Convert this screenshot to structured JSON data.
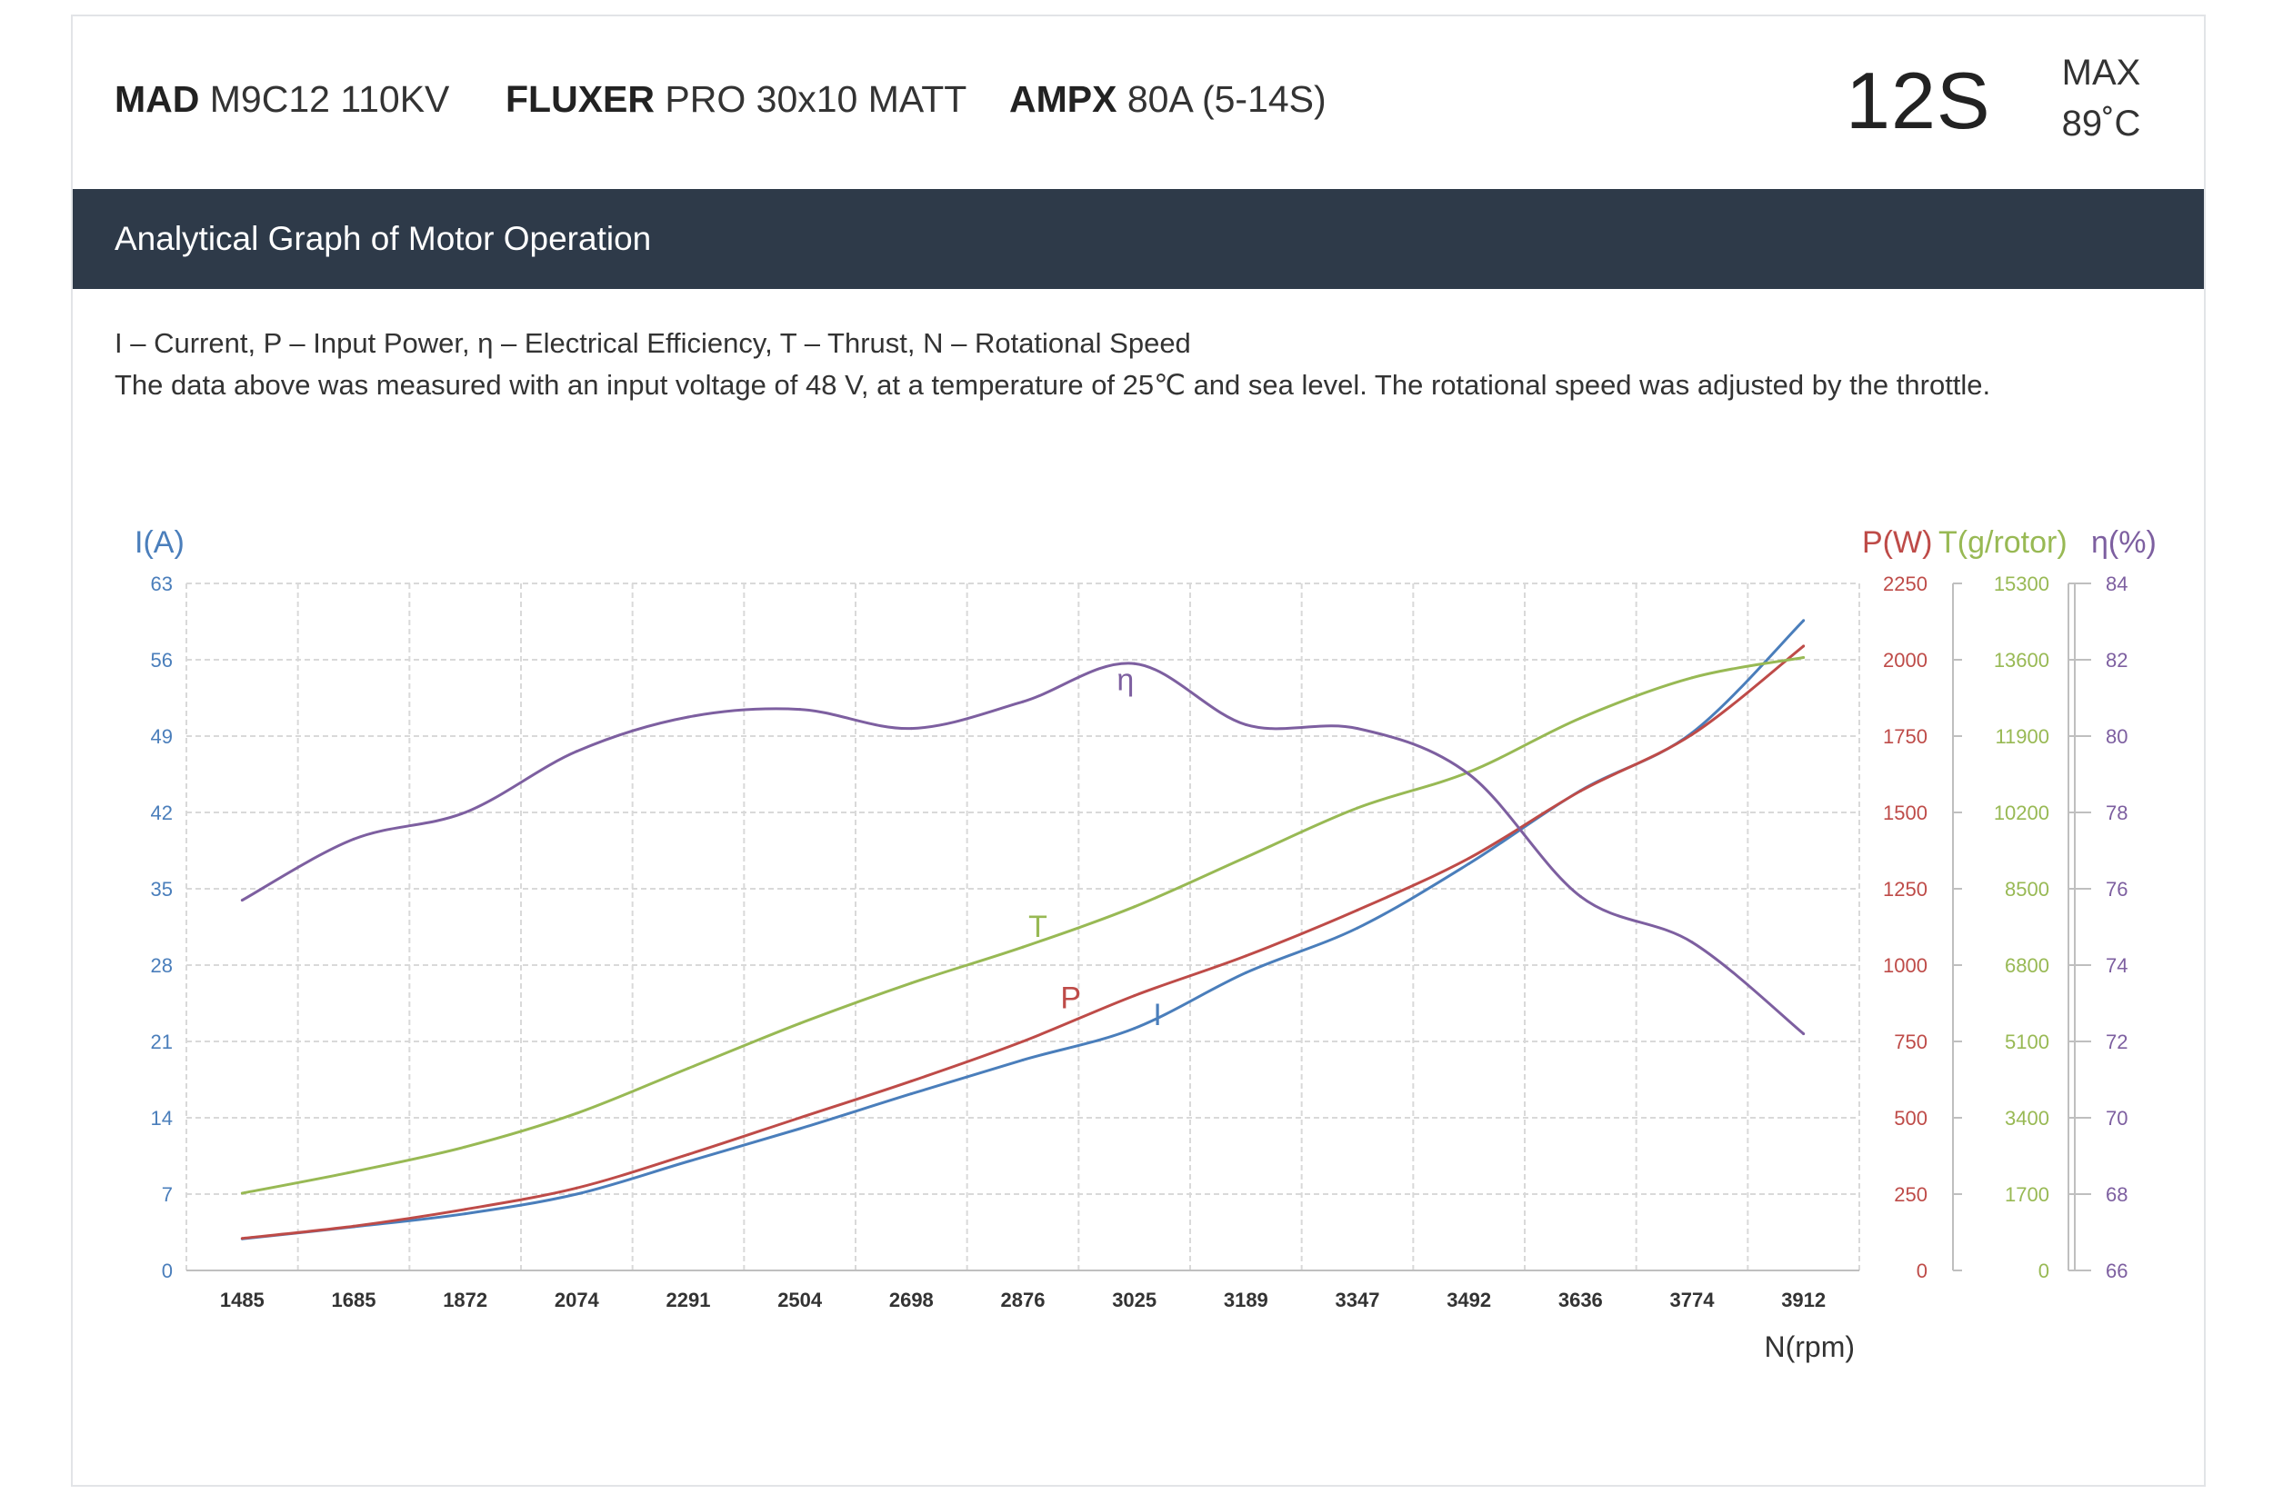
{
  "header": {
    "motor": {
      "brand": "MAD",
      "model": "M9C12 110KV"
    },
    "prop": {
      "brand": "FLUXER",
      "model": "PRO 30x10 MATT"
    },
    "esc": {
      "brand": "AMPX",
      "model": "80A (5-14S)"
    },
    "cells": "12S",
    "max_label": "MAX",
    "max_temp": "89˚C"
  },
  "section_title": "Analytical Graph of Motor Operation",
  "legend_text": "I – Current, P – Input Power, η – Electrical Efficiency, T – Thrust,   N – Rotational Speed",
  "note_text": "The data above was measured with an input voltage of   48 V, at a temperature of 25℃ and sea level. The rotational speed was adjusted by the throttle.",
  "colors": {
    "current": "#4a7ebb",
    "power": "#be4b48",
    "thrust": "#98b954",
    "efficiency": "#7d5fa0",
    "axis_text": "#333333",
    "grid": "#d9d9d9",
    "header_bar": "#2e3a49"
  },
  "chart_data": {
    "type": "line",
    "title": "",
    "xlabel": "N(rpm)",
    "x": [
      1485,
      1685,
      1872,
      2074,
      2291,
      2504,
      2698,
      2876,
      3025,
      3189,
      3347,
      3492,
      3636,
      3774,
      3912
    ],
    "grid": true,
    "axes": {
      "current": {
        "label": "I(A)",
        "ylim": [
          0,
          63
        ],
        "ticks": [
          "0",
          "7",
          "14",
          "21",
          "28",
          "35",
          "42",
          "49",
          "56",
          "63"
        ]
      },
      "power": {
        "label": "P(W)",
        "ylim": [
          0,
          2250
        ],
        "ticks": [
          "0",
          "250",
          "500",
          "750",
          "1000",
          "1250",
          "1500",
          "1750",
          "2000",
          "2250"
        ]
      },
      "thrust": {
        "label": "T(g/rotor)",
        "ylim": [
          0,
          15300
        ],
        "ticks": [
          "0",
          "1700",
          "3400",
          "5100",
          "6800",
          "8500",
          "10200",
          "11900",
          "13600",
          "15300"
        ]
      },
      "efficiency": {
        "label": "η(%)",
        "ylim": [
          66,
          84
        ],
        "ticks": [
          "66",
          "68",
          "70",
          "72",
          "74",
          "76",
          "78",
          "80",
          "82",
          "84"
        ]
      }
    },
    "series": [
      {
        "name": "I",
        "axis": "current",
        "color": "#4a7ebb",
        "label_at": [
          3059,
          22.5
        ],
        "values": [
          2.9,
          4.0,
          5.2,
          7.0,
          10.0,
          13.0,
          16.2,
          19.3,
          22.2,
          27.3,
          31.4,
          37.3,
          44.0,
          49.3,
          59.6
        ]
      },
      {
        "name": "P",
        "axis": "power",
        "color": "#be4b48",
        "label_at": [
          2940,
          858
        ],
        "values": [
          105,
          145,
          200,
          270,
          380,
          500,
          620,
          750,
          900,
          1030,
          1180,
          1350,
          1570,
          1755,
          2045
        ]
      },
      {
        "name": "T",
        "axis": "thrust",
        "color": "#98b954",
        "label_at": [
          2896,
          7430
        ],
        "values": [
          1720,
          2200,
          2750,
          3500,
          4500,
          5500,
          6400,
          7200,
          8100,
          9200,
          10300,
          11100,
          12300,
          13200,
          13650
        ]
      },
      {
        "name": "η",
        "axis": "efficiency",
        "color": "#7d5fa0",
        "label_at": [
          3013,
          81.2
        ],
        "values": [
          75.7,
          77.3,
          78.0,
          79.6,
          80.5,
          80.7,
          80.2,
          80.9,
          81.9,
          80.3,
          80.2,
          79.0,
          75.8,
          74.6,
          72.2
        ]
      }
    ]
  }
}
